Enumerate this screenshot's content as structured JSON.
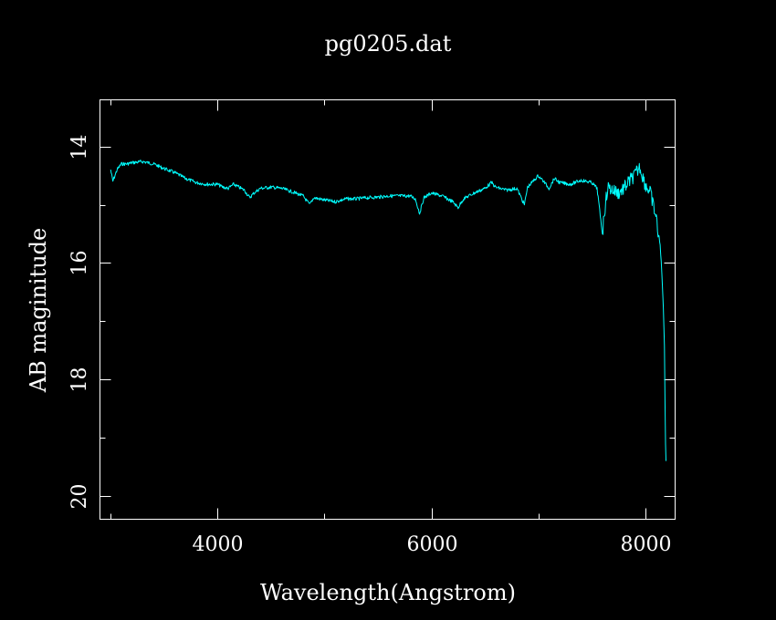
{
  "chart_data": {
    "type": "line",
    "title": "pg0205.dat",
    "xlabel": "Wavelength(Angstrom)",
    "ylabel": "AB maginitude",
    "xlim": [
      2900,
      8280
    ],
    "ylim": [
      20.4,
      13.2
    ],
    "y_inverted": true,
    "xticks_major": [
      4000,
      6000,
      8000
    ],
    "xtick_labels": [
      "4000",
      "6000",
      "8000"
    ],
    "xticks_minor": [
      3000,
      5000,
      7000
    ],
    "yticks_major": [
      14,
      16,
      18,
      20
    ],
    "ytick_labels": [
      "14",
      "16",
      "18",
      "20"
    ],
    "yticks_minor": [
      15,
      17,
      19
    ],
    "grid": false,
    "colors": {
      "background": "#000000",
      "axes": "#ffffff",
      "series": "#00ffff"
    },
    "series": [
      {
        "color": "#00ffff",
        "x": [
          3000,
          3020,
          3040,
          3060,
          3080,
          3100,
          3150,
          3200,
          3250,
          3300,
          3400,
          3500,
          3600,
          3700,
          3800,
          3900,
          4000,
          4050,
          4100,
          4150,
          4200,
          4250,
          4300,
          4340,
          4400,
          4500,
          4600,
          4700,
          4800,
          4861,
          4900,
          5000,
          5100,
          5200,
          5300,
          5400,
          5500,
          5600,
          5700,
          5800,
          5850,
          5890,
          5930,
          6000,
          6100,
          6200,
          6250,
          6300,
          6400,
          6500,
          6563,
          6600,
          6700,
          6800,
          6870,
          6900,
          7000,
          7050,
          7100,
          7150,
          7200,
          7300,
          7400,
          7500,
          7550,
          7600,
          7620,
          7650,
          7700,
          7750,
          7800,
          7850,
          7900,
          7950,
          8000,
          8050,
          8080,
          8100,
          8120,
          8140,
          8160,
          8170,
          8180,
          8185,
          8190,
          8195
        ],
        "y": [
          14.4,
          14.6,
          14.5,
          14.4,
          14.35,
          14.3,
          14.3,
          14.28,
          14.27,
          14.26,
          14.3,
          14.38,
          14.45,
          14.55,
          14.62,
          14.65,
          14.65,
          14.7,
          14.72,
          14.65,
          14.7,
          14.75,
          14.88,
          14.8,
          14.72,
          14.7,
          14.72,
          14.78,
          14.85,
          15.0,
          14.88,
          14.92,
          14.95,
          14.9,
          14.9,
          14.88,
          14.87,
          14.85,
          14.85,
          14.85,
          14.9,
          15.15,
          14.88,
          14.8,
          14.85,
          14.95,
          15.05,
          14.9,
          14.8,
          14.72,
          14.62,
          14.7,
          14.75,
          14.72,
          15.0,
          14.7,
          14.5,
          14.6,
          14.72,
          14.55,
          14.62,
          14.65,
          14.58,
          14.62,
          14.72,
          15.5,
          15.1,
          14.7,
          14.75,
          14.8,
          14.72,
          14.6,
          14.5,
          14.35,
          14.65,
          14.8,
          15.05,
          15.2,
          15.45,
          15.7,
          16.3,
          16.8,
          17.4,
          18.3,
          19.1,
          19.4
        ]
      }
    ]
  }
}
